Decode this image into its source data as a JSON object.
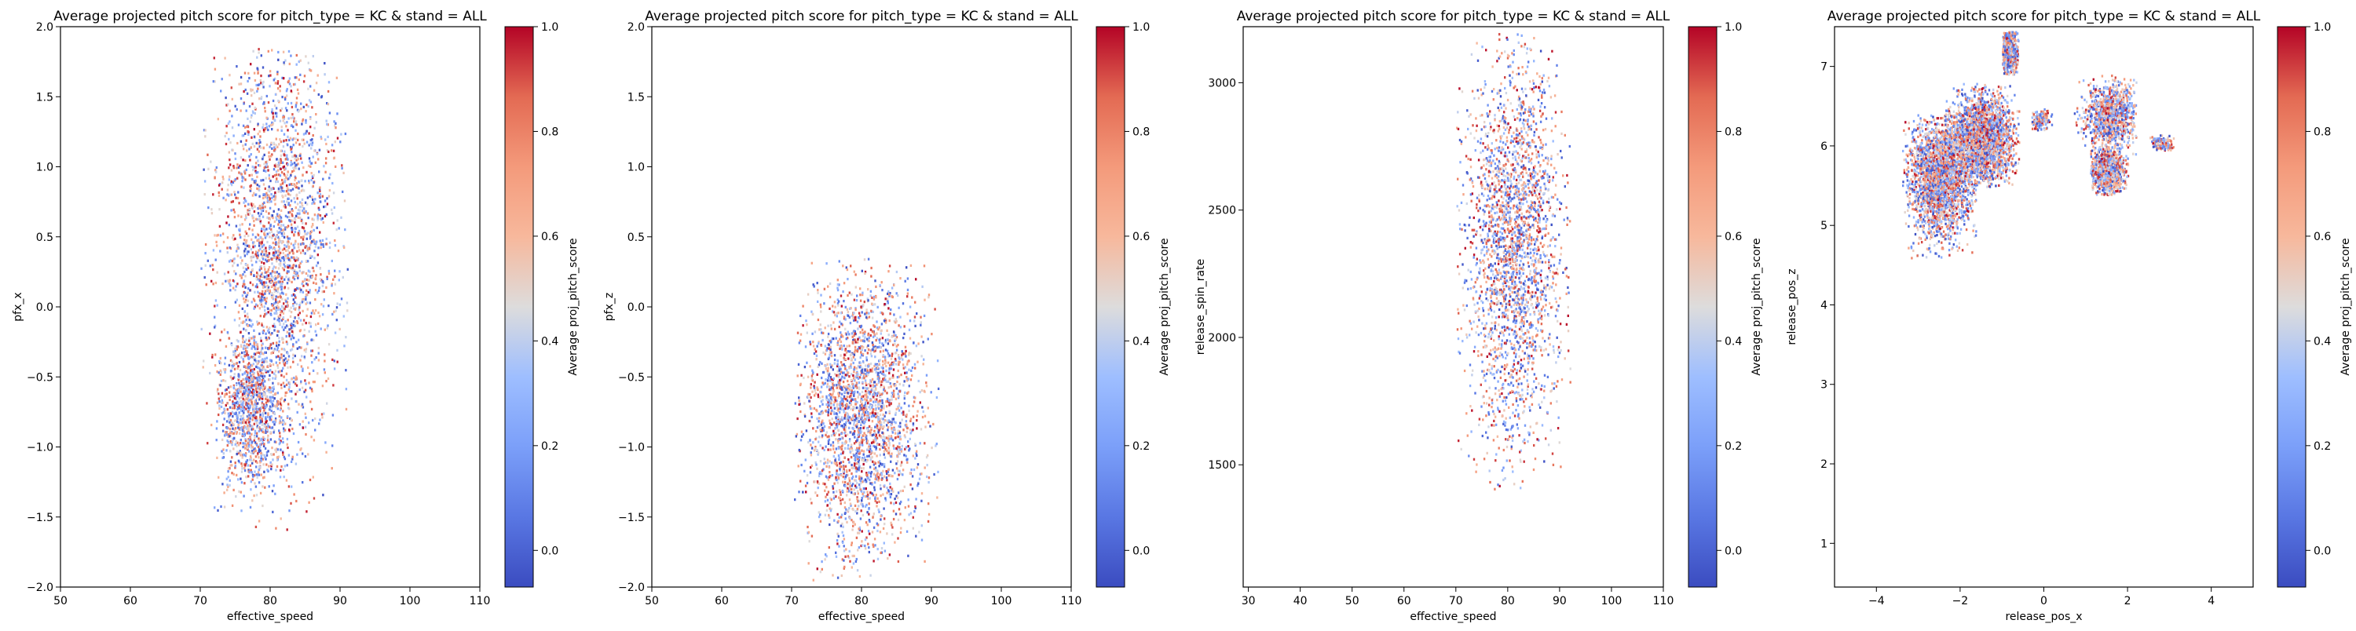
{
  "chart_data": [
    {
      "type": "heatmap",
      "title": "Average projected pitch score for pitch_type = KC & stand = ALL",
      "xlabel": "effective_speed",
      "ylabel": "pfx_x",
      "xlim": [
        50,
        110
      ],
      "ylim": [
        -2.0,
        2.0
      ],
      "xticks": [
        50,
        60,
        70,
        80,
        90,
        100,
        110
      ],
      "yticks": [
        -2.0,
        -1.5,
        -1.0,
        -0.5,
        0.0,
        0.5,
        1.0,
        1.5,
        2.0
      ],
      "xtick_labels": [
        "50",
        "60",
        "70",
        "80",
        "90",
        "100",
        "110"
      ],
      "ytick_labels": [
        "−2.0",
        "−1.5",
        "−1.0",
        "−0.5",
        "0.0",
        "0.5",
        "1.0",
        "1.5",
        "2.0"
      ],
      "clusters": [
        {
          "x_range": [
            70,
            91
          ],
          "y_range": [
            -1.6,
            1.85
          ],
          "center": [
            81,
            0.45
          ],
          "density": "high"
        },
        {
          "x_range": [
            72,
            83
          ],
          "y_range": [
            -1.6,
            -0.2
          ],
          "center": [
            77,
            -0.7
          ],
          "density": "medium"
        }
      ],
      "colorbar": {
        "label": "Average proj_pitch_score",
        "range": [
          -0.07,
          1.0
        ],
        "ticks": [
          0.0,
          0.2,
          0.4,
          0.6,
          0.8,
          1.0
        ],
        "tick_labels": [
          "0.0",
          "0.2",
          "0.4",
          "0.6",
          "0.8",
          "1.0"
        ],
        "colormap": "coolwarm"
      }
    },
    {
      "type": "heatmap",
      "title": "Average projected pitch score for pitch_type = KC & stand = ALL",
      "xlabel": "effective_speed",
      "ylabel": "pfx_z",
      "xlim": [
        50,
        110
      ],
      "ylim": [
        -2.0,
        2.0
      ],
      "xticks": [
        50,
        60,
        70,
        80,
        90,
        100,
        110
      ],
      "yticks": [
        -2.0,
        -1.5,
        -1.0,
        -0.5,
        0.0,
        0.5,
        1.0,
        1.5,
        2.0
      ],
      "xtick_labels": [
        "50",
        "60",
        "70",
        "80",
        "90",
        "100",
        "110"
      ],
      "ytick_labels": [
        "−2.0",
        "−1.5",
        "−1.0",
        "−0.5",
        "0.0",
        "0.5",
        "1.0",
        "1.5",
        "2.0"
      ],
      "clusters": [
        {
          "x_range": [
            70,
            91
          ],
          "y_range": [
            -1.95,
            0.35
          ],
          "center": [
            80,
            -0.75
          ],
          "density": "high"
        }
      ],
      "colorbar": {
        "label": "Average proj_pitch_score",
        "range": [
          -0.07,
          1.0
        ],
        "ticks": [
          0.0,
          0.2,
          0.4,
          0.6,
          0.8,
          1.0
        ],
        "tick_labels": [
          "0.0",
          "0.2",
          "0.4",
          "0.6",
          "0.8",
          "1.0"
        ],
        "colormap": "coolwarm"
      }
    },
    {
      "type": "heatmap",
      "title": "Average projected pitch score for pitch_type = KC & stand = ALL",
      "xlabel": "effective_speed",
      "ylabel": "release_spin_rate",
      "xlim": [
        29,
        110
      ],
      "ylim": [
        1020,
        3220
      ],
      "xticks": [
        30,
        40,
        50,
        60,
        70,
        80,
        90,
        100,
        110
      ],
      "yticks": [
        1500,
        2000,
        2500,
        3000
      ],
      "xtick_labels": [
        "30",
        "40",
        "50",
        "60",
        "70",
        "80",
        "90",
        "100",
        "110"
      ],
      "ytick_labels": [
        "1500",
        "2000",
        "2500",
        "3000"
      ],
      "clusters": [
        {
          "x_range": [
            70,
            92
          ],
          "y_range": [
            1390,
            3200
          ],
          "center": [
            81,
            2350
          ],
          "density": "high"
        }
      ],
      "colorbar": {
        "label": "Average proj_pitch_score",
        "range": [
          -0.07,
          1.0
        ],
        "ticks": [
          0.0,
          0.2,
          0.4,
          0.6,
          0.8,
          1.0
        ],
        "tick_labels": [
          "0.0",
          "0.2",
          "0.4",
          "0.6",
          "0.8",
          "1.0"
        ],
        "colormap": "coolwarm"
      }
    },
    {
      "type": "heatmap",
      "title": "Average projected pitch score for pitch_type = KC & stand = ALL",
      "xlabel": "release_pos_x",
      "ylabel": "release_pos_z",
      "xlim": [
        -5,
        5
      ],
      "ylim": [
        0.45,
        7.5
      ],
      "xticks": [
        -4,
        -2,
        0,
        2,
        4
      ],
      "yticks": [
        1,
        2,
        3,
        4,
        5,
        6,
        7
      ],
      "xtick_labels": [
        "−4",
        "−2",
        "0",
        "2",
        "4"
      ],
      "ytick_labels": [
        "1",
        "2",
        "3",
        "4",
        "5",
        "6",
        "7"
      ],
      "clusters": [
        {
          "x_range": [
            -3.4,
            -1.6
          ],
          "y_range": [
            4.6,
            6.4
          ],
          "center": [
            -2.5,
            5.6
          ],
          "density": "high"
        },
        {
          "x_range": [
            -2.4,
            -0.6
          ],
          "y_range": [
            5.5,
            6.8
          ],
          "center": [
            -1.5,
            6.1
          ],
          "density": "high"
        },
        {
          "x_range": [
            -1.0,
            -0.6
          ],
          "y_range": [
            6.9,
            7.45
          ],
          "center": [
            -0.85,
            7.2
          ],
          "density": "medium"
        },
        {
          "x_range": [
            0.7,
            2.2
          ],
          "y_range": [
            5.9,
            6.9
          ],
          "center": [
            1.6,
            6.4
          ],
          "density": "medium"
        },
        {
          "x_range": [
            1.1,
            2.0
          ],
          "y_range": [
            5.4,
            6.1
          ],
          "center": [
            1.5,
            5.7
          ],
          "density": "medium"
        },
        {
          "x_range": [
            -0.3,
            0.2
          ],
          "y_range": [
            6.2,
            6.5
          ],
          "center": [
            -0.1,
            6.35
          ],
          "density": "low"
        },
        {
          "x_range": [
            2.5,
            3.1
          ],
          "y_range": [
            5.95,
            6.15
          ],
          "center": [
            2.8,
            6.05
          ],
          "density": "low"
        }
      ],
      "colorbar": {
        "label": "Average proj_pitch_score",
        "range": [
          -0.07,
          1.0
        ],
        "ticks": [
          0.0,
          0.2,
          0.4,
          0.6,
          0.8,
          1.0
        ],
        "tick_labels": [
          "0.0",
          "0.2",
          "0.4",
          "0.6",
          "0.8",
          "1.0"
        ],
        "colormap": "coolwarm"
      }
    }
  ]
}
